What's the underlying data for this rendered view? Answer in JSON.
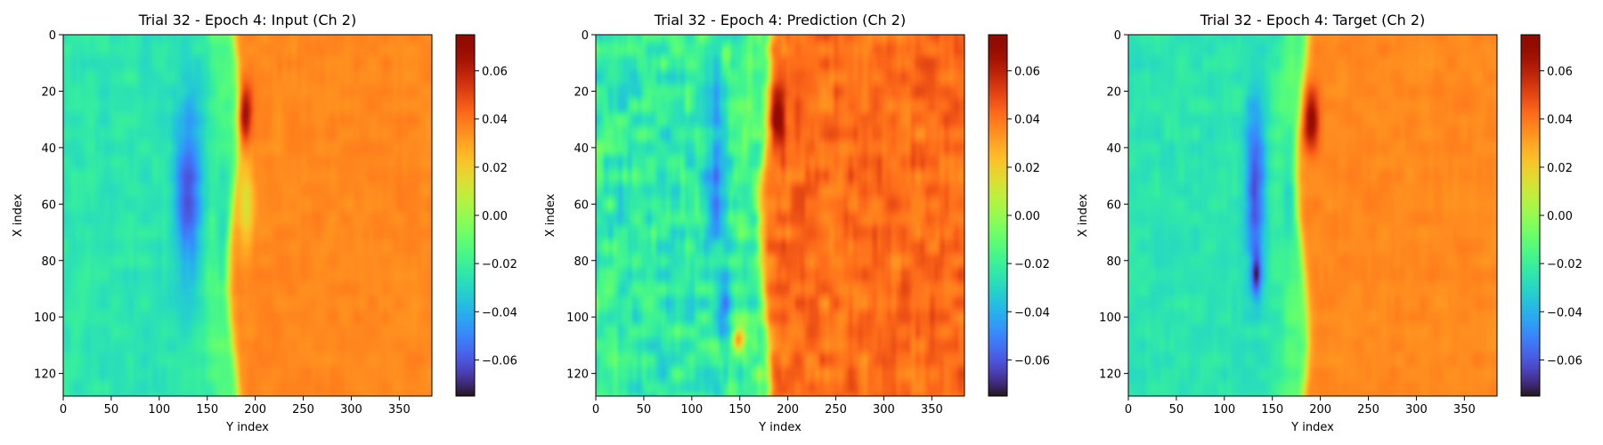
{
  "chart_data": [
    {
      "type": "heatmap",
      "title": "Trial 32 - Epoch 4: Input (Ch 2)",
      "xlabel": "Y index",
      "ylabel": "X index",
      "xlim": [
        0,
        384
      ],
      "ylim": [
        128,
        0
      ],
      "xticks": [
        "0",
        "50",
        "100",
        "150",
        "200",
        "250",
        "300",
        "350"
      ],
      "xtick_values": [
        0,
        50,
        100,
        150,
        200,
        250,
        300,
        350
      ],
      "yticks": [
        "0",
        "20",
        "40",
        "60",
        "80",
        "100",
        "120"
      ],
      "ytick_values": [
        0,
        20,
        40,
        60,
        80,
        100,
        120
      ],
      "colormap": "turbo",
      "colorbar": {
        "range": [
          -0.075,
          0.075
        ],
        "ticks": [
          "0.06",
          "0.04",
          "0.02",
          "0.00",
          "−0.02",
          "−0.04",
          "−0.06"
        ],
        "tick_values": [
          0.06,
          0.04,
          0.02,
          0.0,
          -0.02,
          -0.04,
          -0.06
        ]
      },
      "features": {
        "front_y": 177,
        "left_value": -0.025,
        "right_value": 0.036,
        "noise": 0.004,
        "blobs": [
          {
            "x": 55,
            "y": 130,
            "sx": 30,
            "sy": 14,
            "v": -0.035
          },
          {
            "x": 28,
            "y": 188,
            "sx": 10,
            "sy": 8,
            "v": 0.035
          },
          {
            "x": 60,
            "y": 165,
            "sx": 25,
            "sy": 10,
            "v": -0.015
          },
          {
            "x": 60,
            "y": 190,
            "sx": 16,
            "sy": 8,
            "v": -0.022
          }
        ]
      }
    },
    {
      "type": "heatmap",
      "title": "Trial 32 - Epoch 4: Prediction (Ch 2)",
      "xlabel": "Y index",
      "ylabel": "X index",
      "xlim": [
        0,
        384
      ],
      "ylim": [
        128,
        0
      ],
      "xticks": [
        "0",
        "50",
        "100",
        "150",
        "200",
        "250",
        "300",
        "350"
      ],
      "xtick_values": [
        0,
        50,
        100,
        150,
        200,
        250,
        300,
        350
      ],
      "yticks": [
        "0",
        "20",
        "40",
        "60",
        "80",
        "100",
        "120"
      ],
      "ytick_values": [
        0,
        20,
        40,
        60,
        80,
        100,
        120
      ],
      "colormap": "turbo",
      "colorbar": {
        "range": [
          -0.075,
          0.075
        ],
        "ticks": [
          "0.06",
          "0.04",
          "0.02",
          "0.00",
          "−0.02",
          "−0.04",
          "−0.06"
        ],
        "tick_values": [
          0.06,
          0.04,
          0.02,
          0.0,
          -0.02,
          -0.04,
          -0.06
        ]
      },
      "features": {
        "front_y": 175,
        "left_value": -0.022,
        "right_value": 0.042,
        "noise": 0.012,
        "blobs": [
          {
            "x": 48,
            "y": 125,
            "sx": 28,
            "sy": 10,
            "v": -0.03
          },
          {
            "x": 30,
            "y": 190,
            "sx": 10,
            "sy": 7,
            "v": 0.035
          },
          {
            "x": 108,
            "y": 148,
            "sx": 5,
            "sy": 7,
            "v": 0.065
          },
          {
            "x": 95,
            "y": 135,
            "sx": 10,
            "sy": 8,
            "v": -0.03
          },
          {
            "x": 75,
            "y": 165,
            "sx": 35,
            "sy": 12,
            "v": -0.015
          },
          {
            "x": 8,
            "y": 135,
            "sx": 6,
            "sy": 5,
            "v": 0.03
          }
        ]
      }
    },
    {
      "type": "heatmap",
      "title": "Trial 32 - Epoch 4: Target (Ch 2)",
      "xlabel": "Y index",
      "ylabel": "X index",
      "xlim": [
        0,
        384
      ],
      "ylim": [
        128,
        0
      ],
      "xticks": [
        "0",
        "50",
        "100",
        "150",
        "200",
        "250",
        "300",
        "350"
      ],
      "xtick_values": [
        0,
        50,
        100,
        150,
        200,
        250,
        300,
        350
      ],
      "yticks": [
        "0",
        "20",
        "40",
        "60",
        "80",
        "100",
        "120"
      ],
      "ytick_values": [
        0,
        20,
        40,
        60,
        80,
        100,
        120
      ],
      "colormap": "turbo",
      "colorbar": {
        "range": [
          -0.075,
          0.075
        ],
        "ticks": [
          "0.06",
          "0.04",
          "0.02",
          "0.00",
          "−0.02",
          "−0.04",
          "−0.06"
        ],
        "tick_values": [
          0.06,
          0.04,
          0.02,
          0.0,
          -0.02,
          -0.04,
          -0.06
        ]
      },
      "features": {
        "front_y": 180,
        "left_value": -0.025,
        "right_value": 0.036,
        "noise": 0.004,
        "blobs": [
          {
            "x": 55,
            "y": 132,
            "sx": 32,
            "sy": 10,
            "v": -0.035
          },
          {
            "x": 85,
            "y": 133,
            "sx": 8,
            "sy": 5,
            "v": -0.03
          },
          {
            "x": 30,
            "y": 190,
            "sx": 10,
            "sy": 8,
            "v": 0.035
          },
          {
            "x": 60,
            "y": 165,
            "sx": 25,
            "sy": 10,
            "v": -0.015
          }
        ]
      }
    }
  ]
}
